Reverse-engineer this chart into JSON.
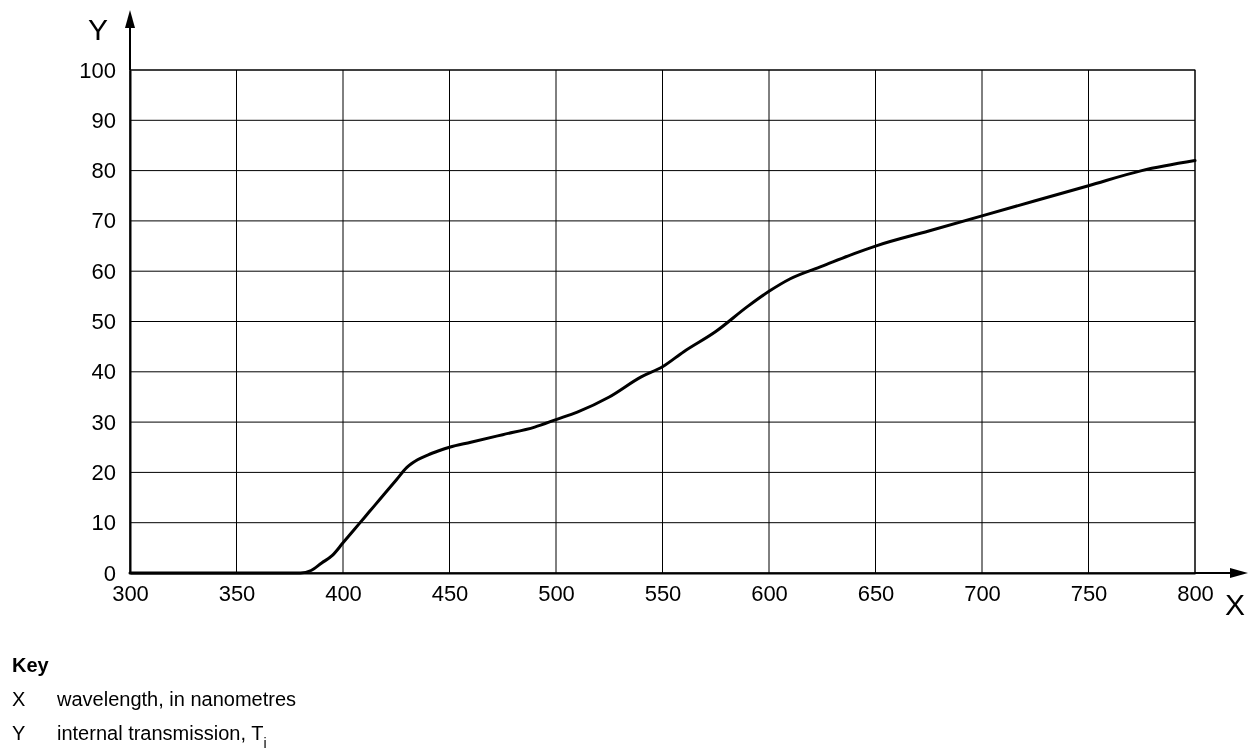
{
  "chart_data": {
    "type": "line",
    "xlabel": "X",
    "ylabel": "Y",
    "xlim": [
      300,
      800
    ],
    "ylim": [
      0,
      100
    ],
    "xticks": [
      300,
      350,
      400,
      450,
      500,
      550,
      600,
      650,
      700,
      750,
      800
    ],
    "yticks": [
      0,
      10,
      20,
      30,
      40,
      50,
      60,
      70,
      80,
      90,
      100
    ],
    "grid": true,
    "marker": "none",
    "line_style": "solid",
    "series": [
      {
        "color": "#000000",
        "x": [
          300,
          340,
          380,
          385,
          390,
          395,
          400,
          405,
          410,
          415,
          420,
          425,
          430,
          435,
          440,
          445,
          450,
          460,
          475,
          490,
          500,
          510,
          525,
          540,
          550,
          560,
          575,
          590,
          600,
          610,
          625,
          640,
          650,
          675,
          700,
          725,
          750,
          775,
          800
        ],
        "values": [
          0,
          0,
          0,
          0.5,
          2,
          3.5,
          6,
          8.5,
          11,
          13.5,
          16,
          18.5,
          21,
          22.5,
          23.5,
          24.3,
          25,
          26,
          27.5,
          29,
          30.5,
          32,
          35,
          39,
          41,
          44,
          48,
          53,
          56,
          58.5,
          61,
          63.5,
          65,
          68,
          71,
          74,
          77,
          80,
          82
        ]
      }
    ],
    "annotations": [
      "Key",
      "X wavelength, in nanometres",
      "Y internal transmission, T$_{i}$"
    ]
  }
}
